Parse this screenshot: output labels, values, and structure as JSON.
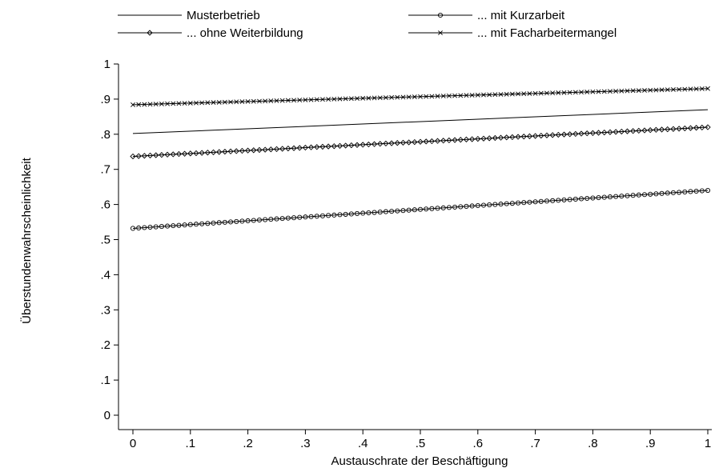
{
  "chart_data": {
    "type": "line",
    "xlabel": "Austauschrate der Beschäftigung",
    "ylabel": "Überstundenwahrscheinlichkeit",
    "xlim": [
      0,
      1
    ],
    "ylim": [
      0,
      1
    ],
    "xticks": [
      0,
      0.1,
      0.2,
      0.3,
      0.4,
      0.5,
      0.6,
      0.7,
      0.8,
      0.9,
      1
    ],
    "xtick_labels": [
      "0",
      ".1",
      ".2",
      ".3",
      ".4",
      ".5",
      ".6",
      ".7",
      ".8",
      ".9",
      "1"
    ],
    "yticks": [
      0,
      0.1,
      0.2,
      0.3,
      0.4,
      0.5,
      0.6,
      0.7,
      0.8,
      0.9,
      1
    ],
    "ytick_labels": [
      "0",
      ".1",
      ".2",
      ".3",
      ".4",
      ".5",
      ".6",
      ".7",
      ".8",
      ".9",
      "1"
    ],
    "grid": false,
    "legend_position": "top",
    "line_color": "#000000",
    "marker_spacing_x": 0.01,
    "series": [
      {
        "name": "Musterbetrieb",
        "marker": "none",
        "x": [
          0,
          1
        ],
        "y": [
          0.802,
          0.87
        ]
      },
      {
        "name": "... mit Kurzarbeit",
        "marker": "circle",
        "x": [
          0,
          1
        ],
        "y": [
          0.532,
          0.64
        ]
      },
      {
        "name": "... ohne Weiterbildung",
        "marker": "diamond",
        "x": [
          0,
          1
        ],
        "y": [
          0.737,
          0.82
        ]
      },
      {
        "name": "... mit Facharbeitermangel",
        "marker": "x",
        "x": [
          0,
          1
        ],
        "y": [
          0.884,
          0.93
        ]
      }
    ]
  }
}
